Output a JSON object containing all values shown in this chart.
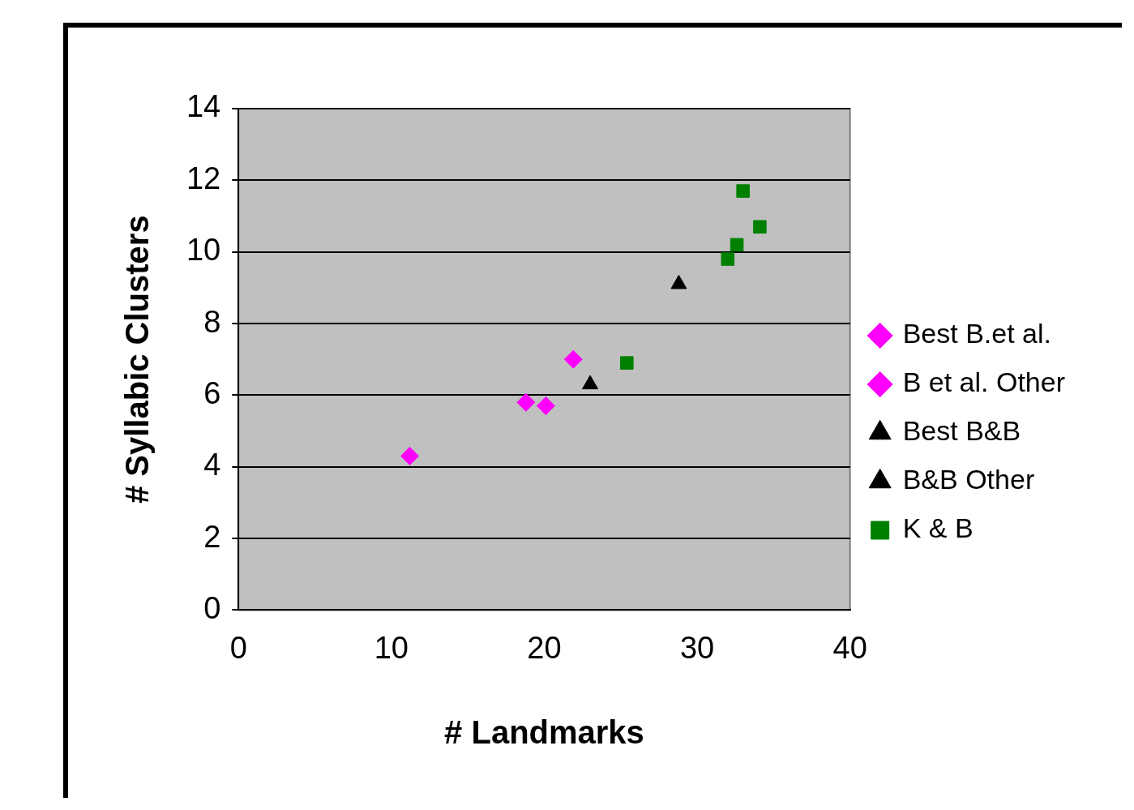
{
  "chart_data": {
    "type": "scatter",
    "xlabel": "# Landmarks",
    "ylabel": "# Syllabic Clusters",
    "xlim": [
      0,
      40
    ],
    "xticks": [
      0,
      10,
      20,
      30,
      40
    ],
    "ylim": [
      0,
      14
    ],
    "yticks": [
      0,
      2,
      4,
      6,
      8,
      10,
      12,
      14
    ],
    "grid": "y",
    "legend": "right",
    "series": [
      {
        "name": "Best B.et al.",
        "color": "#ff00ff",
        "marker": "diamond",
        "x": [
          21.9
        ],
        "values": [
          7.0
        ]
      },
      {
        "name": "B et al. Other",
        "color": "#ff00ff",
        "marker": "diamond",
        "x": [
          11.2,
          18.8,
          20.1
        ],
        "values": [
          4.3,
          5.8,
          5.7
        ]
      },
      {
        "name": "Best B&B",
        "color": "#000000",
        "marker": "triangle",
        "x": [
          28.8
        ],
        "values": [
          9.1
        ]
      },
      {
        "name": "B&B Other",
        "color": "#000000",
        "marker": "triangle",
        "x": [
          23.0
        ],
        "values": [
          6.3
        ]
      },
      {
        "name": "K & B",
        "color": "#008000",
        "marker": "square",
        "x": [
          33.0,
          34.1,
          32.6,
          32.0,
          25.4
        ],
        "values": [
          11.7,
          10.7,
          10.2,
          9.8,
          6.9
        ]
      }
    ]
  }
}
